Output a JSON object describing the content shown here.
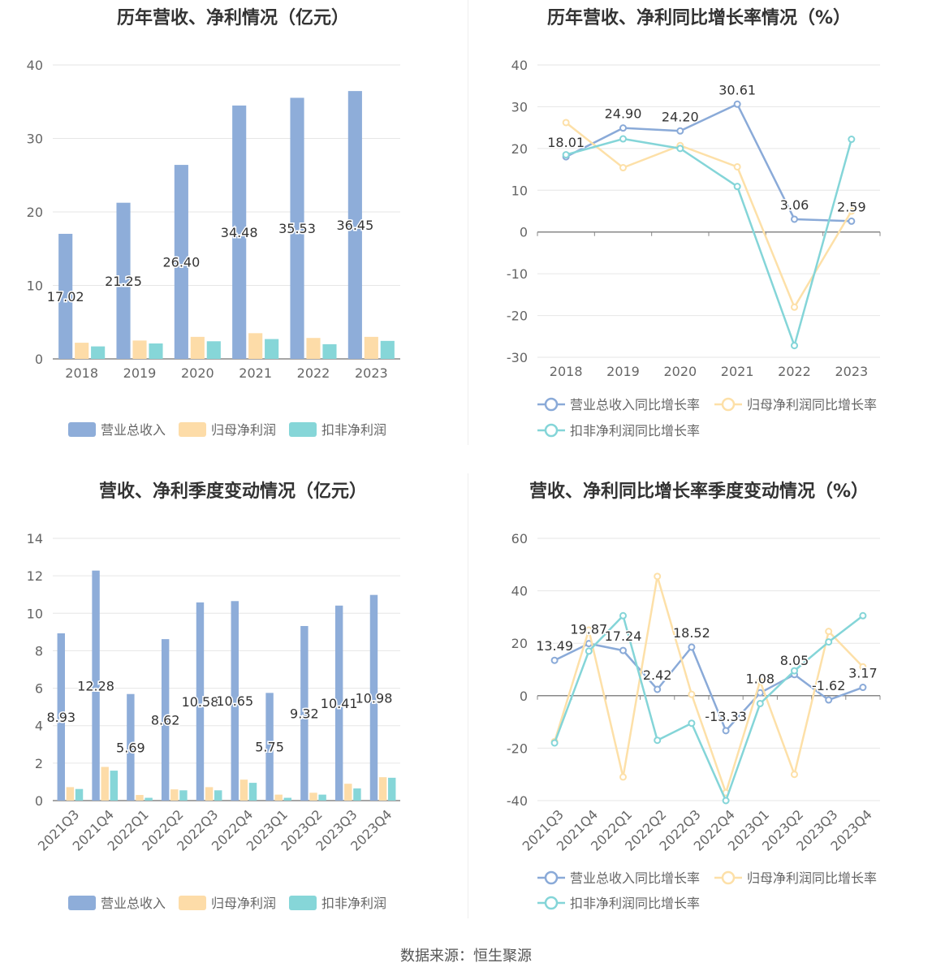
{
  "source": "数据来源：恒生聚源",
  "colors": {
    "revenue": "#8eadd9",
    "net": "#fddca8",
    "deducted": "#86d6d8",
    "revenue_line": "#8aaad8",
    "net_line": "#fde0a8",
    "deducted_line": "#84d5d8"
  },
  "chart_data": [
    {
      "type": "bar",
      "title": "历年营收、净利情况（亿元）",
      "categories": [
        "2018",
        "2019",
        "2020",
        "2021",
        "2022",
        "2023"
      ],
      "ylim": [
        0,
        40
      ],
      "yticks": [
        "0",
        "10",
        "20",
        "30",
        "40"
      ],
      "grid": true,
      "legend_position": "bottom",
      "series": [
        {
          "name": "营业总收入",
          "values": [
            17.02,
            21.25,
            26.4,
            34.48,
            35.53,
            36.45
          ],
          "labels": [
            "17.02",
            "21.25",
            "26.40",
            "34.48",
            "35.53",
            "36.45"
          ]
        },
        {
          "name": "归母净利润",
          "values": [
            2.2,
            2.5,
            3.0,
            3.5,
            2.85,
            3.0
          ]
        },
        {
          "name": "扣非净利润",
          "values": [
            1.7,
            2.1,
            2.4,
            2.7,
            2.0,
            2.45
          ]
        }
      ]
    },
    {
      "type": "line",
      "title": "历年营收、净利同比增长率情况（%）",
      "categories": [
        "2018",
        "2019",
        "2020",
        "2021",
        "2022",
        "2023"
      ],
      "ylim": [
        -30,
        40
      ],
      "yticks": [
        "-30",
        "-20",
        "-10",
        "0",
        "10",
        "20",
        "30",
        "40"
      ],
      "grid": true,
      "legend_position": "bottom",
      "series": [
        {
          "name": "营业总收入同比增长率",
          "values": [
            18.01,
            24.9,
            24.2,
            30.61,
            3.06,
            2.59
          ],
          "labels": [
            "18.01",
            "24.90",
            "24.20",
            "30.61",
            "3.06",
            "2.59"
          ]
        },
        {
          "name": "归母净利润同比增长率",
          "values": [
            26.2,
            15.4,
            20.7,
            15.6,
            -18.0,
            5.0
          ]
        },
        {
          "name": "扣非净利润同比增长率",
          "values": [
            18.5,
            22.3,
            20.0,
            10.9,
            -27.2,
            22.2
          ]
        }
      ]
    },
    {
      "type": "bar",
      "title": "营收、净利季度变动情况（亿元）",
      "categories": [
        "2021Q3",
        "2021Q4",
        "2022Q1",
        "2022Q2",
        "2022Q3",
        "2022Q4",
        "2023Q1",
        "2023Q2",
        "2023Q3",
        "2023Q4"
      ],
      "ylim": [
        0,
        14
      ],
      "yticks": [
        "0",
        "2",
        "4",
        "6",
        "8",
        "10",
        "12",
        "14"
      ],
      "grid": true,
      "legend_position": "bottom",
      "series": [
        {
          "name": "营业总收入",
          "values": [
            8.93,
            12.28,
            5.69,
            8.62,
            10.58,
            10.65,
            5.75,
            9.32,
            10.41,
            10.98
          ],
          "labels": [
            "8.93",
            "12.28",
            "5.69",
            "8.62",
            "10.58",
            "10.65",
            "5.75",
            "9.32",
            "10.41",
            "10.98"
          ]
        },
        {
          "name": "归母净利润",
          "values": [
            0.72,
            1.8,
            0.3,
            0.6,
            0.72,
            1.12,
            0.32,
            0.42,
            0.9,
            1.25
          ]
        },
        {
          "name": "扣非净利润",
          "values": [
            0.62,
            1.6,
            0.15,
            0.55,
            0.55,
            0.95,
            0.15,
            0.32,
            0.65,
            1.22
          ]
        }
      ]
    },
    {
      "type": "line",
      "title": "营收、净利同比增长率季度变动情况（%）",
      "categories": [
        "2021Q3",
        "2021Q4",
        "2022Q1",
        "2022Q2",
        "2022Q3",
        "2022Q4",
        "2023Q1",
        "2023Q2",
        "2023Q3",
        "2023Q4"
      ],
      "ylim": [
        -40,
        60
      ],
      "yticks": [
        "-40",
        "-20",
        "0",
        "20",
        "40",
        "60"
      ],
      "grid": true,
      "legend_position": "bottom",
      "series": [
        {
          "name": "营业总收入同比增长率",
          "values": [
            13.49,
            19.87,
            17.24,
            2.42,
            18.52,
            -13.33,
            1.08,
            8.05,
            -1.62,
            3.17
          ],
          "labels": [
            "13.49",
            "19.87",
            "17.24",
            "2.42",
            "18.52",
            "-13.33",
            "1.08",
            "8.05",
            "-1.62",
            "3.17"
          ]
        },
        {
          "name": "归母净利润同比增长率",
          "values": [
            -17.5,
            25.0,
            -31.0,
            45.5,
            0.5,
            -37.0,
            5.5,
            -30.0,
            24.5,
            11.0
          ]
        },
        {
          "name": "扣非净利润同比增长率",
          "values": [
            -18.0,
            17.0,
            30.5,
            -17.0,
            -10.5,
            -40.0,
            -3.0,
            9.5,
            20.5,
            30.5
          ]
        }
      ]
    }
  ]
}
